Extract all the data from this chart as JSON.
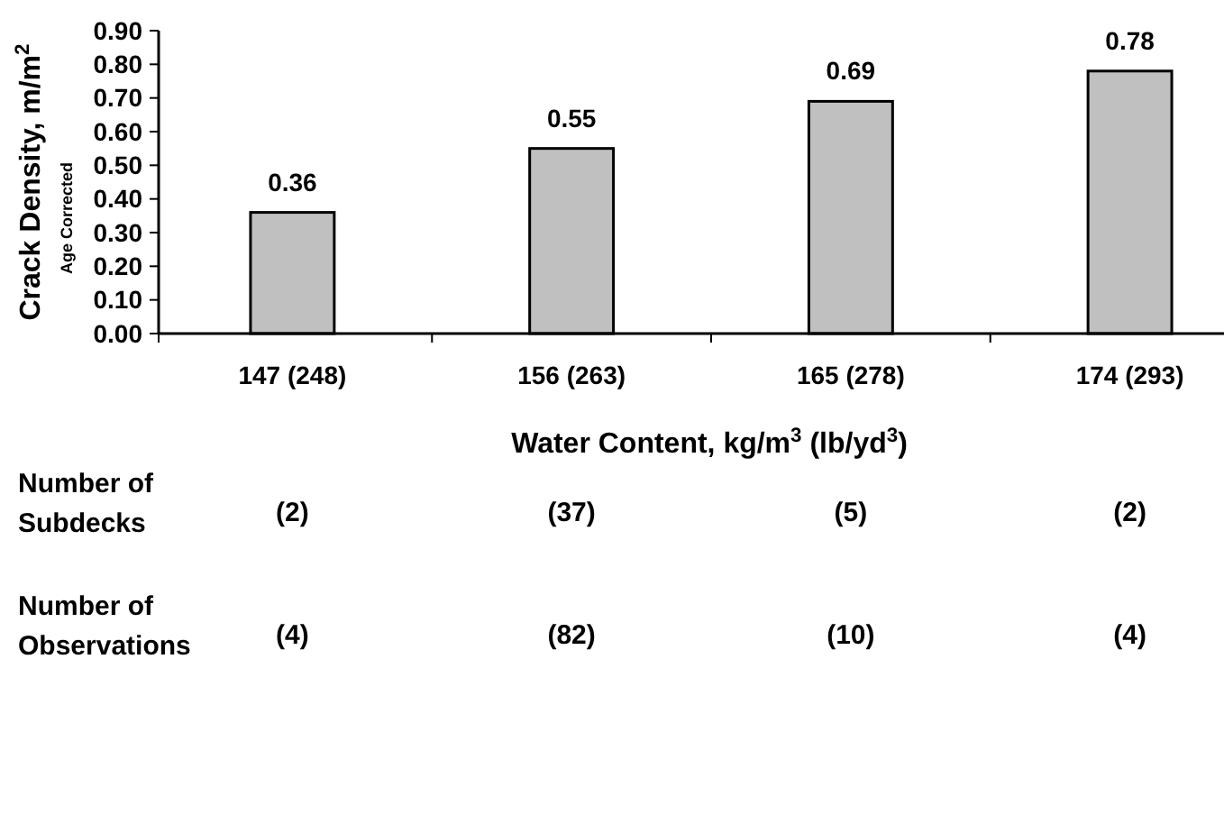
{
  "chart_data": {
    "type": "bar",
    "ylabel": "Crack Density, m/m$^{2}$\nAge Corrected",
    "xlabel": "Water Content, kg/m$^{3}$ (lb/yd$^{3}$)",
    "categories": [
      "147 (248)",
      "156 (263)",
      "165 (278)",
      "174 (293)"
    ],
    "values": [
      0.36,
      0.55,
      0.69,
      0.78
    ],
    "color": "#c0c0c0",
    "data_labels": true,
    "ylim": [
      0,
      0.9
    ],
    "yticks": [
      {
        "value": 0,
        "label": "0.00"
      },
      {
        "value": 0.1,
        "label": "0.10"
      },
      {
        "value": 0.2,
        "label": "0.20"
      },
      {
        "value": 0.3,
        "label": "0.30"
      },
      {
        "value": 0.4,
        "label": "0.40"
      },
      {
        "value": 0.5,
        "label": "0.50"
      },
      {
        "value": 0.6,
        "label": "0.60"
      },
      {
        "value": 0.7,
        "label": "0.70"
      },
      {
        "value": 0.8,
        "label": "0.80"
      },
      {
        "value": 0.9,
        "label": "0.90"
      }
    ],
    "annotations": [
      "Number of Subdecks",
      "(2)",
      "(37)",
      "(5)",
      "(2)",
      "Number of Observations",
      "(4)",
      "(82)",
      "(10)",
      "(4)"
    ]
  }
}
